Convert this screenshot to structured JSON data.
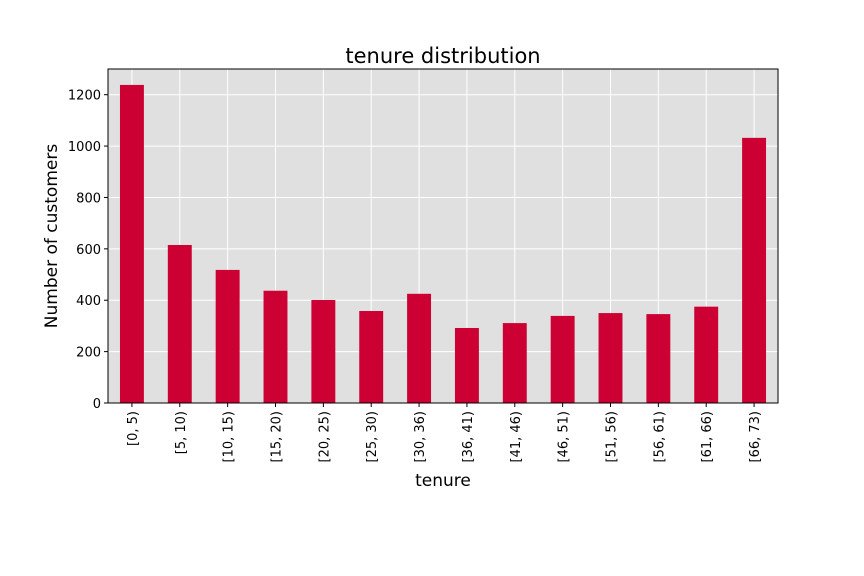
{
  "chart_data": {
    "type": "bar",
    "title": "tenure distribution",
    "xlabel": "tenure",
    "ylabel": "Number of customers",
    "categories": [
      "[0, 5)",
      "[5, 10)",
      "[10, 15)",
      "[15, 20)",
      "[20, 25)",
      "[25, 30)",
      "[30, 36)",
      "[36, 41)",
      "[41, 46)",
      "[46, 51)",
      "[51, 56)",
      "[56, 61)",
      "[61, 66)",
      "[66, 73)"
    ],
    "values": [
      1238,
      615,
      518,
      437,
      401,
      358,
      425,
      292,
      311,
      339,
      350,
      346,
      375,
      1032
    ],
    "ylim": [
      0,
      1300
    ],
    "yticks": [
      0,
      200,
      400,
      600,
      800,
      1000,
      1200
    ],
    "grid": true,
    "colors": {
      "bar": "#cc0033",
      "plot_background": "#e0e0e0",
      "grid": "#ffffff"
    }
  }
}
